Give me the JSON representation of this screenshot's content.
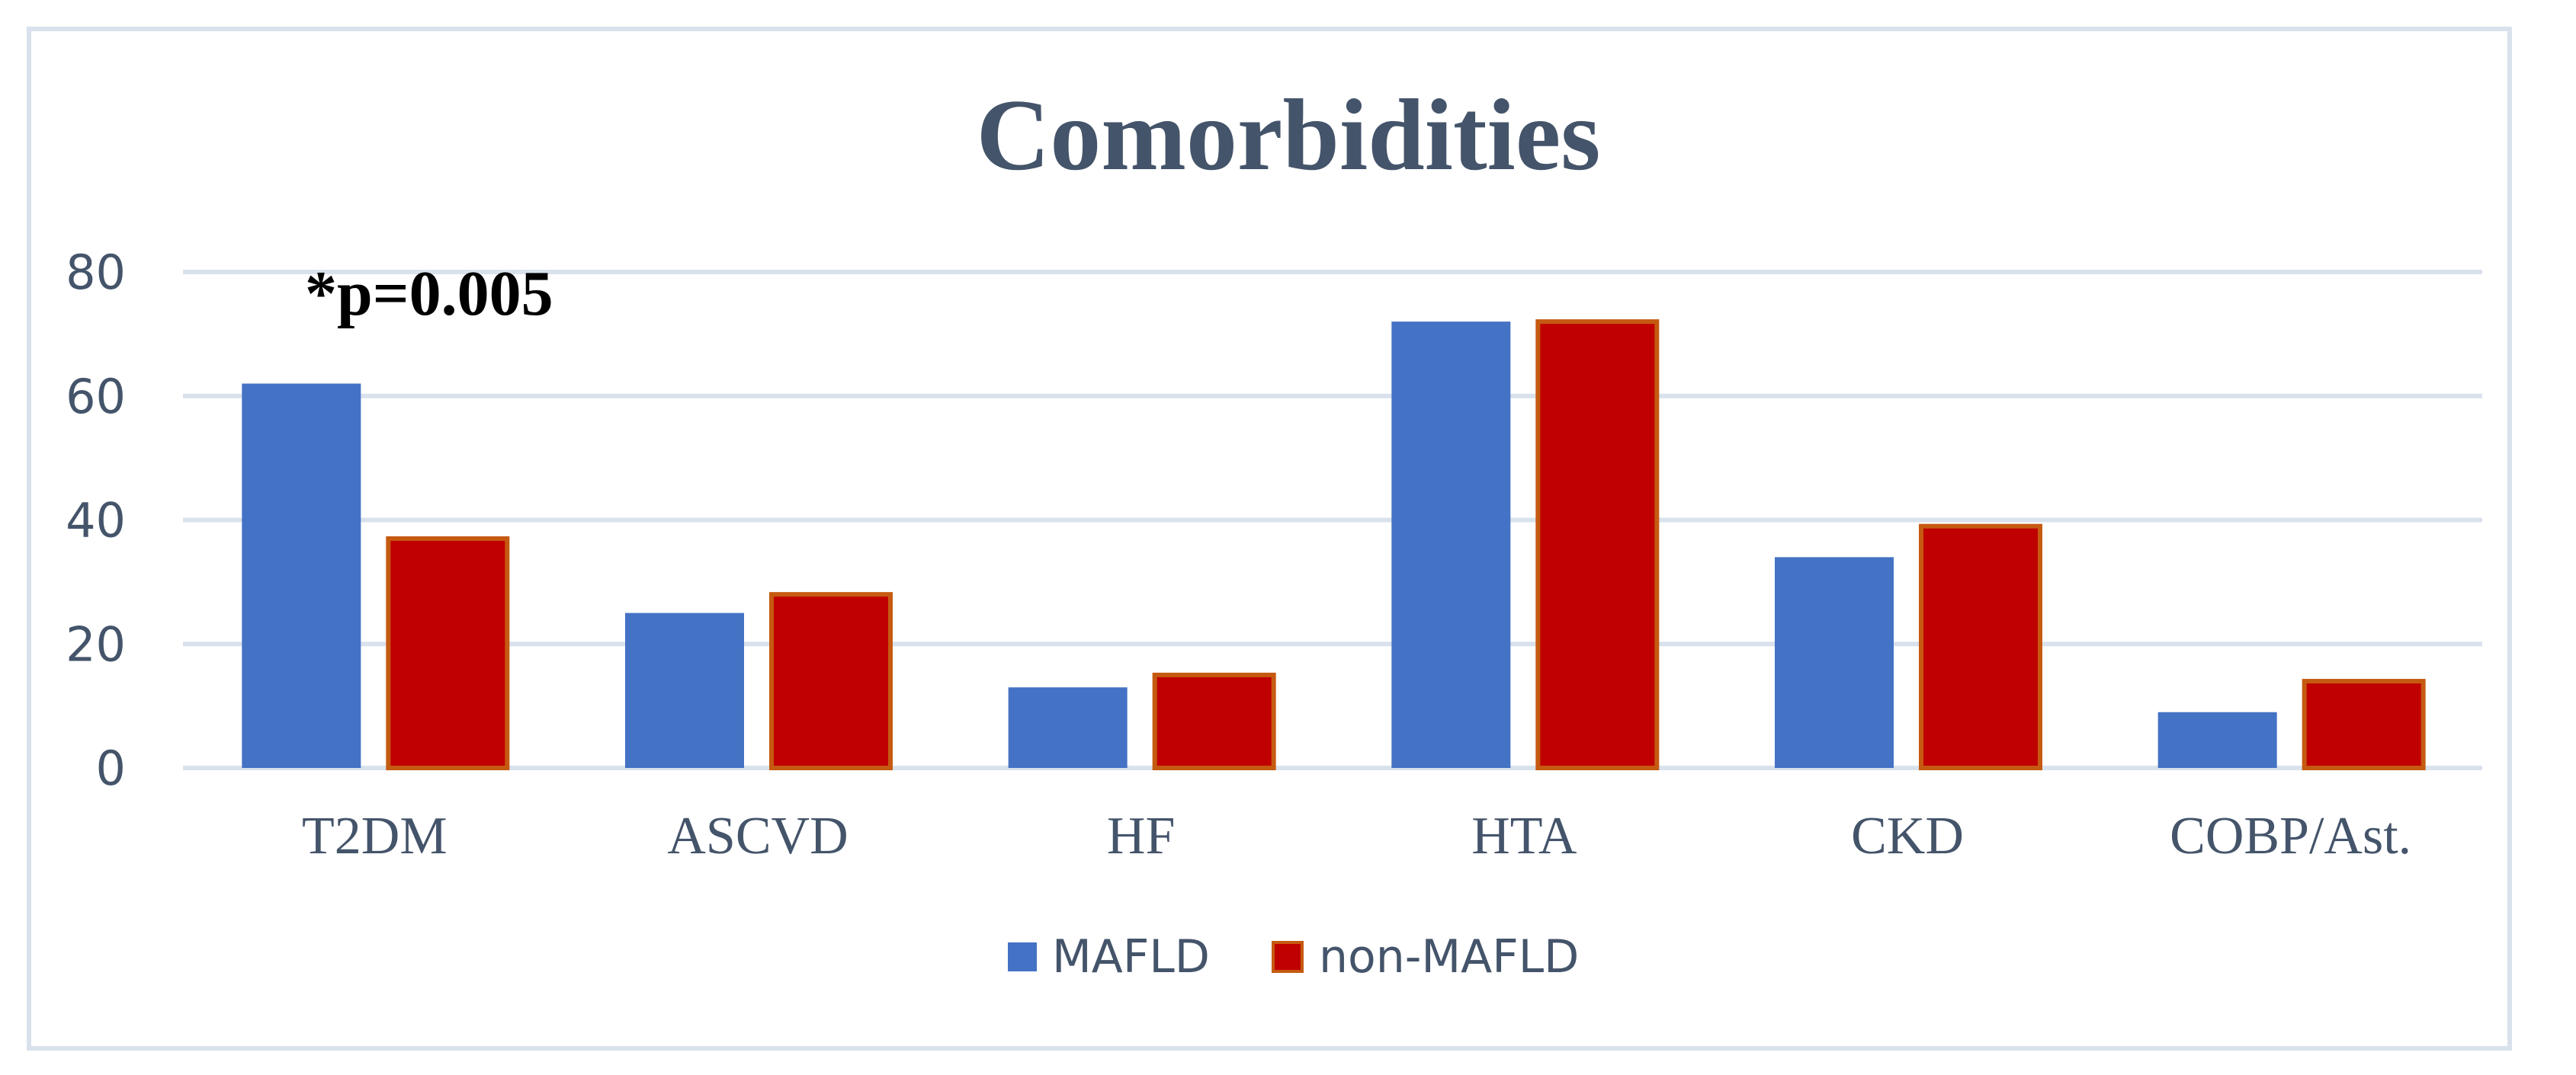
{
  "chart_data": {
    "type": "bar",
    "title": "Comorbidities",
    "annotation": "*p=0.005",
    "categories": [
      "T2DM",
      "ASCVD",
      "HF",
      "HTA",
      "CKD",
      "COBP/Ast."
    ],
    "series": [
      {
        "name": "MAFLD",
        "values": [
          62,
          25,
          13,
          72,
          34,
          9
        ],
        "color": "#4472c4"
      },
      {
        "name": "non-MAFLD",
        "values": [
          37,
          28,
          15,
          72,
          39,
          14
        ],
        "color": "#c00000",
        "stroke": "#c55a11"
      }
    ],
    "yticks": [
      0,
      20,
      40,
      60,
      80
    ],
    "ylim": [
      0,
      80
    ],
    "xlabel": "",
    "ylabel": "",
    "legend_position": "bottom",
    "grid": true,
    "colors": {
      "title": "#44546a",
      "axis_text": "#44546a",
      "gridline": "#d9e2ec",
      "frame": "#d9e2ec"
    }
  }
}
